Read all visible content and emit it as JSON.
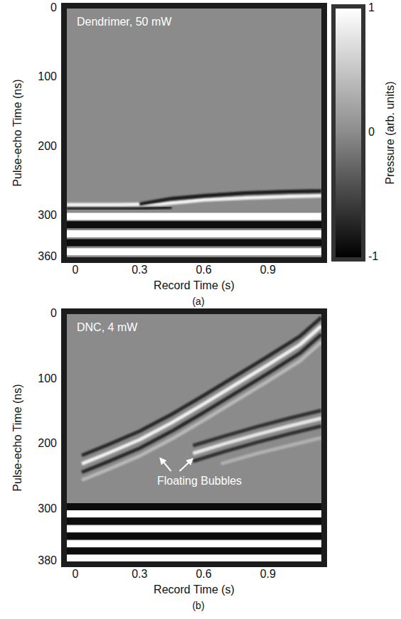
{
  "chart_data": [
    {
      "type": "line",
      "title": "Dendrimer, 50 mW",
      "caption": "(a)",
      "x_label": "Record Time (s)",
      "y_label": "Pulse-echo Time (ns)",
      "xlim": [
        -0.04,
        1.15
      ],
      "xticks": [
        0,
        0.3,
        0.6,
        0.9
      ],
      "ylim": [
        0,
        360
      ],
      "yticks": [
        0,
        100,
        200,
        300,
        360
      ],
      "colorbar": {
        "label": "Pressure (arb. units)",
        "range": [
          -1,
          1
        ],
        "ticks": [
          -1,
          0,
          1
        ]
      },
      "series": [
        {
          "type": "line",
          "color": "#f2f2f2",
          "x": [
            -0.04,
            0.2,
            0.4,
            0.5,
            0.6,
            0.8,
            1.0,
            1.15
          ],
          "values": [
            284,
            284,
            283,
            280,
            277,
            274,
            272,
            271
          ]
        },
        {
          "type": "line",
          "color": "#1a1a1a",
          "x": [
            0.3,
            0.45,
            0.6,
            0.8,
            1.0,
            1.15
          ],
          "values": [
            283,
            275,
            271,
            267,
            265,
            264
          ]
        },
        {
          "type": "line",
          "color": "#2a2a2a",
          "x": [
            -0.04,
            0.3,
            0.45
          ],
          "values": [
            290,
            290,
            288
          ]
        },
        {
          "type": "band",
          "color": "#ffffff",
          "x": [
            -0.04,
            1.15
          ],
          "values": [
            301,
            301
          ]
        },
        {
          "type": "band",
          "color": "#0d0d0d",
          "x": [
            -0.04,
            1.15
          ],
          "values": [
            313,
            313
          ]
        },
        {
          "type": "band",
          "color": "#ffffff",
          "x": [
            -0.04,
            1.15
          ],
          "values": [
            326,
            326
          ]
        },
        {
          "type": "band",
          "color": "#0d0d0d",
          "x": [
            -0.04,
            1.15
          ],
          "values": [
            339,
            339
          ]
        },
        {
          "type": "band",
          "color": "#ffffff",
          "x": [
            -0.04,
            1.15
          ],
          "values": [
            352,
            352
          ]
        }
      ]
    },
    {
      "type": "line",
      "title": "DNC, 4 mW",
      "caption": "(b)",
      "x_label": "Record Time (s)",
      "y_label": "Pulse-echo Time (ns)",
      "xlim": [
        -0.04,
        1.15
      ],
      "xticks": [
        0,
        0.3,
        0.6,
        0.9
      ],
      "ylim": [
        0,
        380
      ],
      "yticks": [
        0,
        100,
        200,
        300,
        380
      ],
      "annotations": [
        {
          "text": "Floating Bubbles",
          "x": 0.58,
          "y": 262
        }
      ],
      "series": [
        {
          "type": "line",
          "color": "#2a2a2a",
          "x": [
            0.03,
            0.15,
            0.3,
            0.45,
            0.6,
            0.75,
            0.9,
            1.05,
            1.15
          ],
          "values": [
            217,
            201,
            180,
            154,
            125,
            95,
            65,
            34,
            5
          ]
        },
        {
          "type": "line",
          "color": "#f0f0f0",
          "x": [
            0.03,
            0.15,
            0.3,
            0.45,
            0.6,
            0.75,
            0.9,
            1.05,
            1.15
          ],
          "values": [
            230,
            214,
            193,
            167,
            138,
            108,
            78,
            47,
            18
          ]
        },
        {
          "type": "line",
          "color": "#2a2a2a",
          "x": [
            0.03,
            0.15,
            0.3,
            0.45,
            0.6,
            0.75,
            0.9,
            1.05,
            1.15
          ],
          "values": [
            243,
            227,
            206,
            180,
            151,
            121,
            91,
            60,
            31
          ]
        },
        {
          "type": "line",
          "color": "#b8b8b8",
          "x": [
            0.03,
            0.15,
            0.3,
            0.45,
            0.6,
            0.75,
            0.9,
            1.05,
            1.15
          ],
          "values": [
            255,
            239,
            218,
            192,
            163,
            133,
            103,
            72,
            43
          ]
        },
        {
          "type": "line",
          "color": "#333333",
          "x": [
            0.55,
            0.7,
            0.85,
            1.0,
            1.15
          ],
          "values": [
            202,
            187,
            173,
            160,
            148
          ]
        },
        {
          "type": "line",
          "color": "#e6e6e6",
          "x": [
            0.55,
            0.7,
            0.85,
            1.0,
            1.15
          ],
          "values": [
            214,
            199,
            185,
            172,
            160
          ]
        },
        {
          "type": "line",
          "color": "#333333",
          "x": [
            0.55,
            0.7,
            0.85,
            1.0,
            1.15
          ],
          "values": [
            226,
            211,
            197,
            184,
            172
          ]
        },
        {
          "type": "line",
          "color": "#b0b0b0",
          "x": [
            0.68,
            0.85,
            1.0,
            1.15
          ],
          "values": [
            230,
            214,
            202,
            190
          ]
        },
        {
          "type": "band",
          "color": "#0d0d0d",
          "x": [
            -0.04,
            1.15
          ],
          "values": [
            296,
            296
          ]
        },
        {
          "type": "band",
          "color": "#ffffff",
          "x": [
            -0.04,
            1.15
          ],
          "values": [
            307,
            307
          ]
        },
        {
          "type": "band",
          "color": "#0d0d0d",
          "x": [
            -0.04,
            1.15
          ],
          "values": [
            318,
            318
          ]
        },
        {
          "type": "band",
          "color": "#ffffff",
          "x": [
            -0.04,
            1.15
          ],
          "values": [
            330,
            330
          ]
        },
        {
          "type": "band",
          "color": "#0d0d0d",
          "x": [
            -0.04,
            1.15
          ],
          "values": [
            341,
            341
          ]
        },
        {
          "type": "band",
          "color": "#ffffff",
          "x": [
            -0.04,
            1.15
          ],
          "values": [
            353,
            353
          ]
        },
        {
          "type": "band",
          "color": "#0d0d0d",
          "x": [
            -0.04,
            1.15
          ],
          "values": [
            364,
            364
          ]
        },
        {
          "type": "band",
          "color": "#ffffff",
          "x": [
            -0.04,
            1.15
          ],
          "values": [
            375,
            375
          ]
        }
      ]
    }
  ]
}
